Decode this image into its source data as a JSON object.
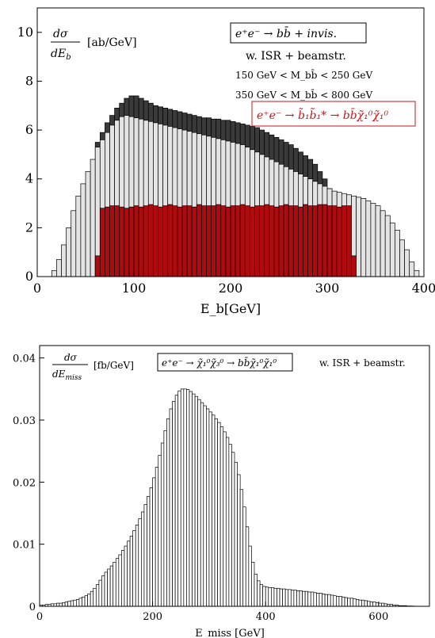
{
  "chart_data": [
    {
      "type": "bar",
      "title": "",
      "xlabel": "E_b[GeV]",
      "ylabel": "dσ/dE_b [ab/GeV]",
      "xlim": [
        0,
        400
      ],
      "ylim": [
        0,
        11
      ],
      "xticks": [
        "0",
        "100",
        "200",
        "300",
        "400"
      ],
      "yticks": [
        "0",
        "2",
        "4",
        "6",
        "8",
        "10"
      ],
      "ylabel_unit": "[ab/GeV]",
      "annotations": {
        "process": "e⁺e⁻ → bb̄ + invis.",
        "isr": "w. ISR + beamstr.",
        "cut1": "150 GeV < M_bb̄ < 250 GeV",
        "cut2": "350 GeV < M_bb̄ < 800 GeV",
        "signal": "e⁺e⁻ → b̃₁b̃₁* → bb̄χ̃₁⁰χ̃₁⁰"
      },
      "bin_width": 5,
      "series": [
        {
          "name": "",
          "color": "#3a3a3a",
          "x_start": 60,
          "values": [
            5.5,
            5.9,
            6.3,
            6.6,
            6.9,
            7.1,
            7.3,
            7.4,
            7.4,
            7.3,
            7.2,
            7.1,
            7.0,
            6.95,
            6.9,
            6.85,
            6.8,
            6.75,
            6.7,
            6.65,
            6.6,
            6.55,
            6.5,
            6.5,
            6.45,
            6.45,
            6.4,
            6.4,
            6.35,
            6.3,
            6.25,
            6.2,
            6.15,
            6.1,
            6.0,
            5.9,
            5.8,
            5.7,
            5.6,
            5.5,
            5.4,
            5.25,
            5.1,
            4.95,
            4.8,
            4.6,
            4.3,
            4.0,
            3.6,
            3.2,
            2.8,
            2.4,
            2.0,
            1.6
          ]
        },
        {
          "name": "",
          "color": "#e4e4e4",
          "x_start": 15,
          "values": [
            0.25,
            0.7,
            1.3,
            2.0,
            2.7,
            3.3,
            3.8,
            4.3,
            4.8,
            5.3,
            5.6,
            5.9,
            6.2,
            6.4,
            6.55,
            6.6,
            6.55,
            6.5,
            6.45,
            6.4,
            6.35,
            6.3,
            6.25,
            6.2,
            6.15,
            6.1,
            6.05,
            6.0,
            5.95,
            5.9,
            5.85,
            5.8,
            5.75,
            5.7,
            5.65,
            5.6,
            5.55,
            5.5,
            5.45,
            5.4,
            5.3,
            5.2,
            5.1,
            5.0,
            4.9,
            4.8,
            4.7,
            4.6,
            4.5,
            4.4,
            4.3,
            4.2,
            4.1,
            4.0,
            3.9,
            3.8,
            3.7,
            3.6,
            3.5,
            3.45,
            3.4,
            3.35,
            3.3,
            3.25,
            3.2,
            3.1,
            3.0,
            2.9,
            2.7,
            2.5,
            2.2,
            1.9,
            1.5,
            1.1,
            0.6,
            0.25
          ]
        },
        {
          "name": "",
          "color": "#b0090e",
          "x_start": 60,
          "values": [
            0.85,
            2.8,
            2.85,
            2.9,
            2.9,
            2.85,
            2.8,
            2.85,
            2.9,
            2.85,
            2.9,
            2.95,
            2.9,
            2.85,
            2.9,
            2.95,
            2.9,
            2.85,
            2.9,
            2.9,
            2.85,
            2.95,
            2.9,
            2.9,
            2.9,
            2.95,
            2.9,
            2.85,
            2.9,
            2.9,
            2.95,
            2.9,
            2.85,
            2.9,
            2.9,
            2.95,
            2.9,
            2.85,
            2.9,
            2.95,
            2.9,
            2.9,
            2.85,
            2.95,
            2.9,
            2.9,
            2.95,
            2.95,
            2.9,
            2.9,
            2.85,
            2.9,
            2.9,
            0.85
          ]
        }
      ]
    },
    {
      "type": "bar",
      "title": "",
      "xlabel": "E_miss [GeV]",
      "ylabel": "dσ/dE_miss [fb/GeV]",
      "xlim": [
        0,
        690
      ],
      "ylim": [
        0,
        0.042
      ],
      "xticks": [
        "0",
        "200",
        "400",
        "600"
      ],
      "yticks": [
        "0",
        "0.01",
        "0.02",
        "0.03",
        "0.04"
      ],
      "ylabel_unit": "[fb/GeV]",
      "annotations": {
        "process": "e⁺e⁻ → χ̃₁⁰χ̃₃⁰ → bb̄χ̃₁⁰χ̃₁⁰",
        "isr": "w. ISR + beamstr."
      },
      "bin_width": 5,
      "series": [
        {
          "name": "",
          "color": "#ffffff",
          "x_start": 0,
          "values": [
            0.0002,
            0.0002,
            0.0003,
            0.0003,
            0.0004,
            0.0004,
            0.0005,
            0.0005,
            0.0006,
            0.0007,
            0.0008,
            0.0009,
            0.001,
            0.0011,
            0.0013,
            0.0015,
            0.0017,
            0.002,
            0.0024,
            0.0029,
            0.0035,
            0.0042,
            0.0049,
            0.0055,
            0.006,
            0.0065,
            0.0071,
            0.0077,
            0.0083,
            0.009,
            0.0097,
            0.0105,
            0.0113,
            0.0122,
            0.0131,
            0.0141,
            0.0152,
            0.0164,
            0.0177,
            0.0191,
            0.0207,
            0.0224,
            0.0243,
            0.0263,
            0.0283,
            0.0302,
            0.0318,
            0.033,
            0.034,
            0.0347,
            0.035,
            0.035,
            0.0349,
            0.0346,
            0.0342,
            0.0338,
            0.0333,
            0.0328,
            0.0323,
            0.0318,
            0.0313,
            0.0308,
            0.0302,
            0.0296,
            0.0289,
            0.0281,
            0.0272,
            0.0261,
            0.0248,
            0.0232,
            0.0212,
            0.0188,
            0.016,
            0.0128,
            0.0097,
            0.0071,
            0.0052,
            0.0041,
            0.0035,
            0.0032,
            0.0031,
            0.003,
            0.003,
            0.0029,
            0.0029,
            0.0028,
            0.0028,
            0.0027,
            0.0027,
            0.0026,
            0.0026,
            0.0025,
            0.0025,
            0.0024,
            0.0024,
            0.0023,
            0.0023,
            0.0022,
            0.0021,
            0.0021,
            0.002,
            0.0019,
            0.0019,
            0.0018,
            0.0017,
            0.0016,
            0.0016,
            0.0015,
            0.0014,
            0.0013,
            0.0013,
            0.0012,
            0.0011,
            0.001,
            0.001,
            0.0009,
            0.0008,
            0.0007,
            0.0007,
            0.0006,
            0.0005,
            0.0005,
            0.0004,
            0.0003,
            0.0003,
            0.0002,
            0.0002,
            0.0001,
            0.0001,
            0.0001,
            5e-05,
            5e-05,
            3e-05,
            2e-05,
            1e-05,
            1e-05,
            0.0
          ]
        }
      ]
    }
  ]
}
